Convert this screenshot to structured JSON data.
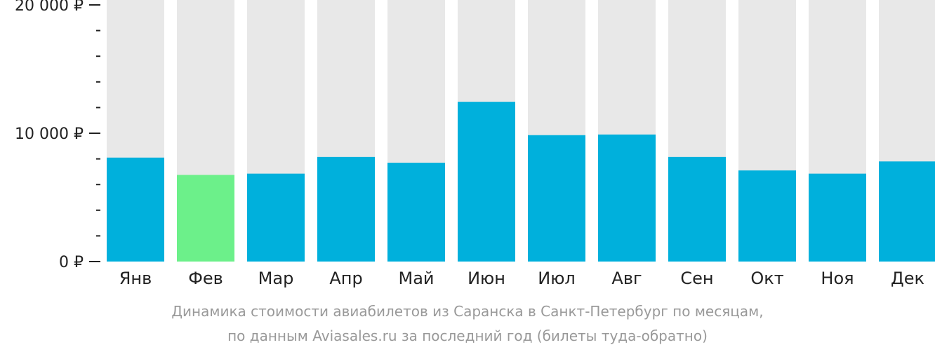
{
  "colors": {
    "bar": "#00b0dc",
    "bar_highlight": "#6cf08a",
    "track": "#e8e8e8",
    "axis": "#222222",
    "caption": "#999999"
  },
  "caption": {
    "line1": "Динамика стоимости авиабилетов из Саранска в Санкт-Петербург по месяцам,",
    "line2": "по данным Aviasales.ru за последний год (билеты туда-обратно)"
  },
  "chart_data": {
    "type": "bar",
    "categories": [
      "Янв",
      "Фев",
      "Мар",
      "Апр",
      "Май",
      "Июн",
      "Июл",
      "Авг",
      "Сен",
      "Окт",
      "Ноя",
      "Дек"
    ],
    "values": [
      8100,
      6750,
      6850,
      8150,
      7700,
      12450,
      9850,
      9900,
      8150,
      7100,
      6850,
      7800
    ],
    "highlight_index": 1,
    "ylim": [
      0,
      20000
    ],
    "y_ticks": [
      {
        "value": 0,
        "label": "0 ₽"
      },
      {
        "value": 10000,
        "label": "10 000 ₽"
      },
      {
        "value": 20000,
        "label": "20 000 ₽"
      }
    ],
    "y_minor_step": 2000,
    "title": "",
    "xlabel": "",
    "ylabel": "",
    "grid": false,
    "legend": "none"
  }
}
